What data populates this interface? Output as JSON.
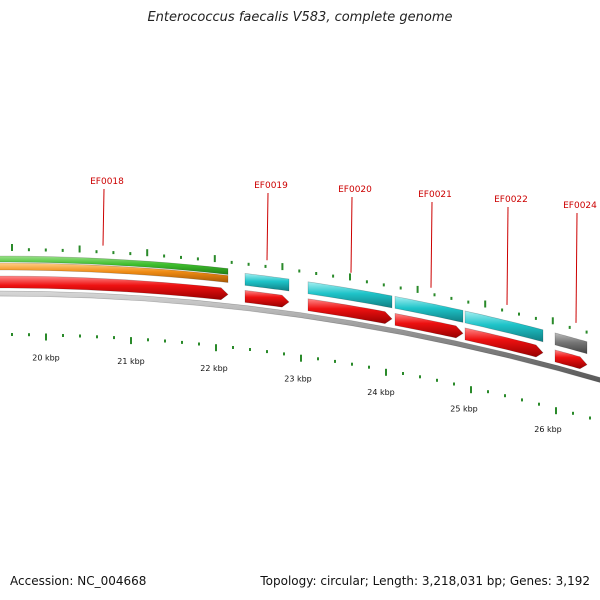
{
  "title": "Enterococcus faecalis V583, complete genome",
  "footer": {
    "accession": "Accession: NC_004668",
    "summary": "Topology: circular; Length: 3,218,031 bp; Genes: 3,192"
  },
  "genes": [
    {
      "label": "EF0018",
      "cds": true,
      "rna_color": "#4ec83c",
      "product_color": "#f08c14"
    },
    {
      "label": "EF0019",
      "cds": true,
      "product_color": "#20c8cc"
    },
    {
      "label": "EF0020",
      "cds": true,
      "product_color": "#20c8cc"
    },
    {
      "label": "EF0021",
      "cds": true,
      "product_color": "#20c8cc"
    },
    {
      "label": "EF0022",
      "cds": true,
      "product_color": "#20c8cc"
    },
    {
      "label": "EF0024",
      "cds": true,
      "product_color": "#777777"
    }
  ],
  "kbp_labels": [
    "20 kbp",
    "21 kbp",
    "22 kbp",
    "23 kbp",
    "24 kbp",
    "25 kbp",
    "26 kbp"
  ],
  "colors": {
    "gene_label": "#cc0000",
    "tick": "#2a8a2a",
    "backbone": "#888888"
  }
}
